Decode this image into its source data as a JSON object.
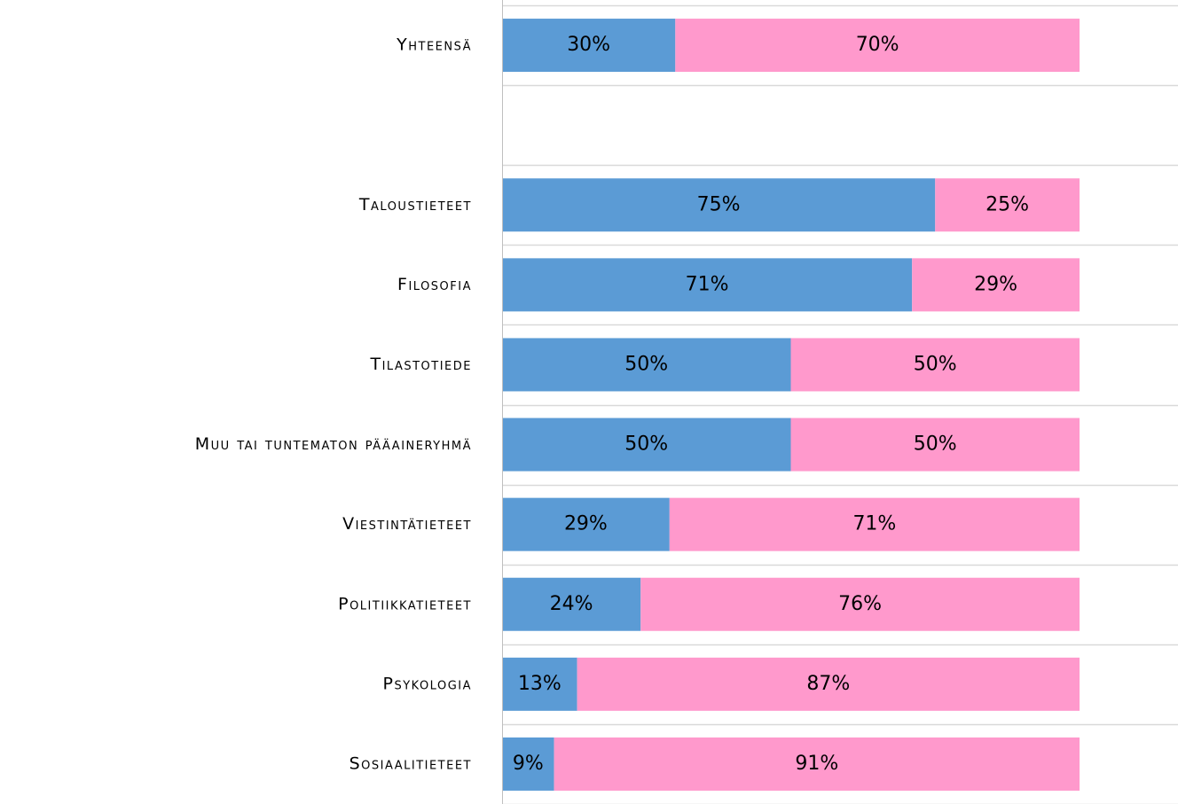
{
  "chart_data": {
    "type": "stacked-bar-horizontal",
    "categories": [
      "Yhteensä",
      null,
      "Taloustieteet",
      "Filosofia",
      "Tilastotiede",
      "Muu tai tuntematon pääaineryhmä",
      "Viestintätieteet",
      "Politiikkatieteet",
      "Psykologia",
      "Sosiaalitieteet"
    ],
    "series": [
      {
        "color": "#5b9bd5",
        "values": [
          30,
          null,
          75,
          71,
          50,
          50,
          29,
          24,
          13,
          9
        ],
        "value_labels": [
          "30%",
          null,
          "75%",
          "71%",
          "50%",
          "50%",
          "29%",
          "24%",
          "13%",
          "9%"
        ]
      },
      {
        "color": "#ff99cc",
        "values": [
          70,
          null,
          25,
          29,
          50,
          50,
          71,
          76,
          87,
          91
        ],
        "value_labels": [
          "70%",
          null,
          "25%",
          "29%",
          "50%",
          "50%",
          "71%",
          "76%",
          "87%",
          "91%"
        ]
      }
    ],
    "xlim": [
      0,
      100
    ]
  }
}
